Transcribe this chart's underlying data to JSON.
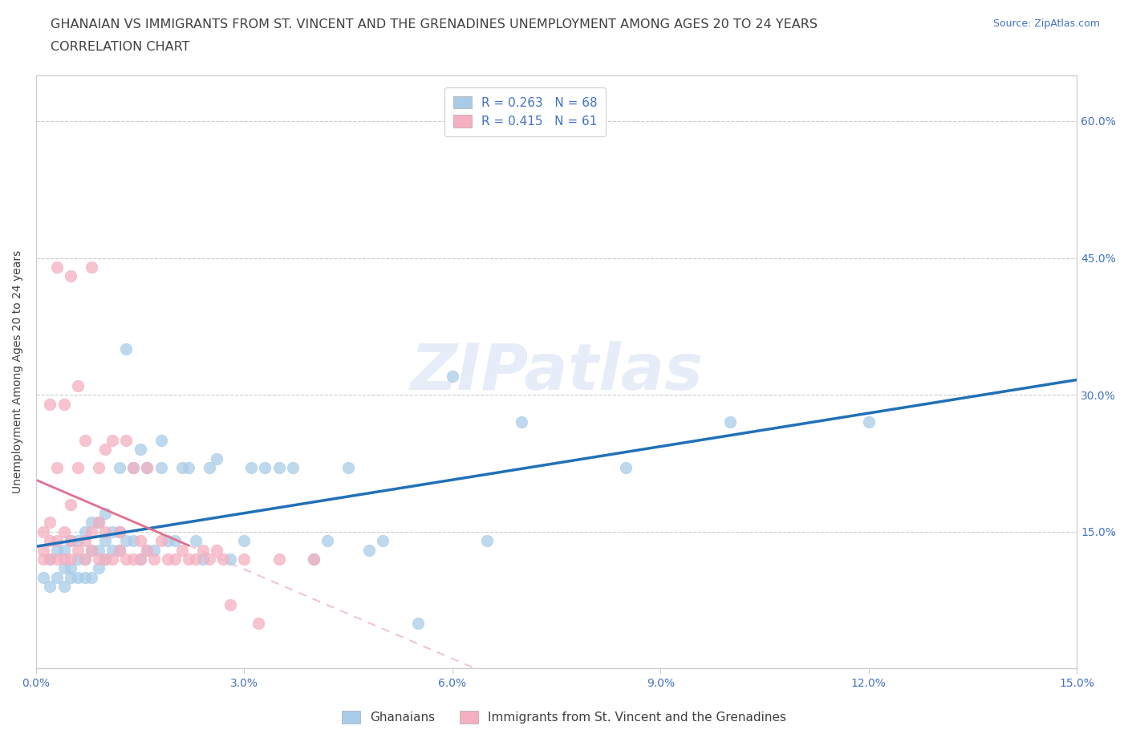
{
  "title_line1": "GHANAIAN VS IMMIGRANTS FROM ST. VINCENT AND THE GRENADINES UNEMPLOYMENT AMONG AGES 20 TO 24 YEARS",
  "title_line2": "CORRELATION CHART",
  "source_text": "Source: ZipAtlas.com",
  "ylabel": "Unemployment Among Ages 20 to 24 years",
  "xlim": [
    0.0,
    0.15
  ],
  "ylim": [
    0.0,
    0.65
  ],
  "xticks": [
    0.0,
    0.03,
    0.06,
    0.09,
    0.12,
    0.15
  ],
  "yticks_right": [
    0.0,
    0.15,
    0.3,
    0.45,
    0.6
  ],
  "ytick_labels_right": [
    "",
    "15.0%",
    "30.0%",
    "45.0%",
    "60.0%"
  ],
  "xtick_labels": [
    "0.0%",
    "3.0%",
    "6.0%",
    "9.0%",
    "12.0%",
    "15.0%"
  ],
  "watermark": "ZIPatlas",
  "color_blue": "#a8cce8",
  "color_pink": "#f4afc0",
  "color_blue_line": "#2170b8",
  "color_pink_line": "#e07090",
  "color_pink_dashed": "#e8a0b0",
  "R_blue": 0.263,
  "N_blue": 68,
  "R_pink": 0.415,
  "N_pink": 61,
  "legend_label_blue": "Ghanaians",
  "legend_label_pink": "Immigrants from St. Vincent and the Grenadines",
  "ghanaian_x": [
    0.001,
    0.002,
    0.002,
    0.003,
    0.003,
    0.004,
    0.004,
    0.004,
    0.005,
    0.005,
    0.005,
    0.006,
    0.006,
    0.006,
    0.007,
    0.007,
    0.007,
    0.008,
    0.008,
    0.008,
    0.009,
    0.009,
    0.009,
    0.01,
    0.01,
    0.01,
    0.011,
    0.011,
    0.012,
    0.012,
    0.012,
    0.013,
    0.013,
    0.014,
    0.014,
    0.015,
    0.015,
    0.016,
    0.016,
    0.017,
    0.018,
    0.018,
    0.019,
    0.02,
    0.021,
    0.022,
    0.023,
    0.024,
    0.025,
    0.026,
    0.028,
    0.03,
    0.031,
    0.033,
    0.035,
    0.037,
    0.04,
    0.042,
    0.045,
    0.048,
    0.05,
    0.055,
    0.06,
    0.065,
    0.07,
    0.085,
    0.1,
    0.12
  ],
  "ghanaian_y": [
    0.1,
    0.12,
    0.09,
    0.1,
    0.13,
    0.09,
    0.11,
    0.13,
    0.1,
    0.11,
    0.14,
    0.1,
    0.12,
    0.14,
    0.1,
    0.12,
    0.15,
    0.1,
    0.13,
    0.16,
    0.11,
    0.13,
    0.16,
    0.12,
    0.14,
    0.17,
    0.13,
    0.15,
    0.13,
    0.15,
    0.22,
    0.35,
    0.14,
    0.22,
    0.14,
    0.12,
    0.24,
    0.13,
    0.22,
    0.13,
    0.22,
    0.25,
    0.14,
    0.14,
    0.22,
    0.22,
    0.14,
    0.12,
    0.22,
    0.23,
    0.12,
    0.14,
    0.22,
    0.22,
    0.22,
    0.22,
    0.12,
    0.14,
    0.22,
    0.13,
    0.14,
    0.05,
    0.32,
    0.14,
    0.27,
    0.22,
    0.27,
    0.27
  ],
  "svg_x": [
    0.001,
    0.001,
    0.001,
    0.002,
    0.002,
    0.002,
    0.002,
    0.003,
    0.003,
    0.003,
    0.003,
    0.004,
    0.004,
    0.004,
    0.005,
    0.005,
    0.005,
    0.005,
    0.006,
    0.006,
    0.006,
    0.007,
    0.007,
    0.007,
    0.008,
    0.008,
    0.008,
    0.009,
    0.009,
    0.009,
    0.01,
    0.01,
    0.01,
    0.011,
    0.011,
    0.012,
    0.012,
    0.013,
    0.013,
    0.014,
    0.014,
    0.015,
    0.015,
    0.016,
    0.016,
    0.017,
    0.018,
    0.019,
    0.02,
    0.021,
    0.022,
    0.023,
    0.024,
    0.025,
    0.026,
    0.027,
    0.028,
    0.03,
    0.032,
    0.035,
    0.04
  ],
  "svg_y": [
    0.12,
    0.13,
    0.15,
    0.12,
    0.14,
    0.16,
    0.29,
    0.12,
    0.14,
    0.22,
    0.44,
    0.12,
    0.15,
    0.29,
    0.12,
    0.14,
    0.18,
    0.43,
    0.13,
    0.22,
    0.31,
    0.12,
    0.14,
    0.25,
    0.13,
    0.15,
    0.44,
    0.12,
    0.16,
    0.22,
    0.12,
    0.15,
    0.24,
    0.12,
    0.25,
    0.13,
    0.15,
    0.12,
    0.25,
    0.12,
    0.22,
    0.12,
    0.14,
    0.13,
    0.22,
    0.12,
    0.14,
    0.12,
    0.12,
    0.13,
    0.12,
    0.12,
    0.13,
    0.12,
    0.13,
    0.12,
    0.07,
    0.12,
    0.05,
    0.12,
    0.12
  ],
  "title_fontsize": 11.5,
  "subtitle_fontsize": 11.5,
  "axis_label_fontsize": 10,
  "tick_fontsize": 10,
  "legend_fontsize": 11,
  "source_fontsize": 9,
  "background_color": "#ffffff",
  "grid_color": "#cccccc",
  "title_color": "#404040",
  "tick_color": "#4472c4",
  "axis_color": "#cccccc"
}
